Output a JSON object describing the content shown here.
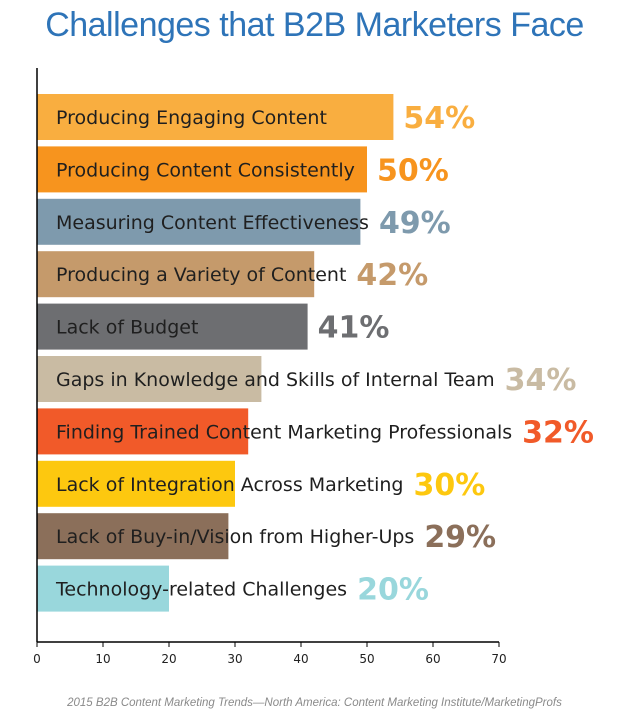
{
  "title": "Challenges that B2B Marketers Face",
  "source": "2015 B2B Content Marketing Trends—North America: Content Marketing Institute/MarketingProfs",
  "chart_data": {
    "type": "bar",
    "orientation": "horizontal",
    "title": "Challenges that B2B Marketers Face",
    "xlim": [
      0,
      70
    ],
    "xticks": [
      0,
      10,
      20,
      30,
      40,
      50,
      60,
      70
    ],
    "grid": false,
    "categories": [
      "Producing Engaging Content",
      "Producing Content Consistently",
      "Measuring Content Effectiveness",
      "Producing a Variety of Content",
      "Lack of Budget",
      "Gaps in Knowledge and Skills of Internal Team",
      "Finding Trained Content Marketing Professionals",
      "Lack of Integration Across Marketing",
      "Lack of Buy-in/Vision from Higher-Ups",
      "Technology-related Challenges"
    ],
    "values": [
      54,
      50,
      49,
      42,
      41,
      34,
      32,
      30,
      29,
      20
    ],
    "value_labels": [
      "54%",
      "50%",
      "49%",
      "42%",
      "41%",
      "34%",
      "32%",
      "30%",
      "29%",
      "20%"
    ],
    "colors": [
      "#f9ae40",
      "#f7941e",
      "#7e9aad",
      "#c59a6b",
      "#6d6e71",
      "#c9bba3",
      "#f15a29",
      "#fdc80f",
      "#8b6f5a",
      "#99d7dc"
    ]
  }
}
